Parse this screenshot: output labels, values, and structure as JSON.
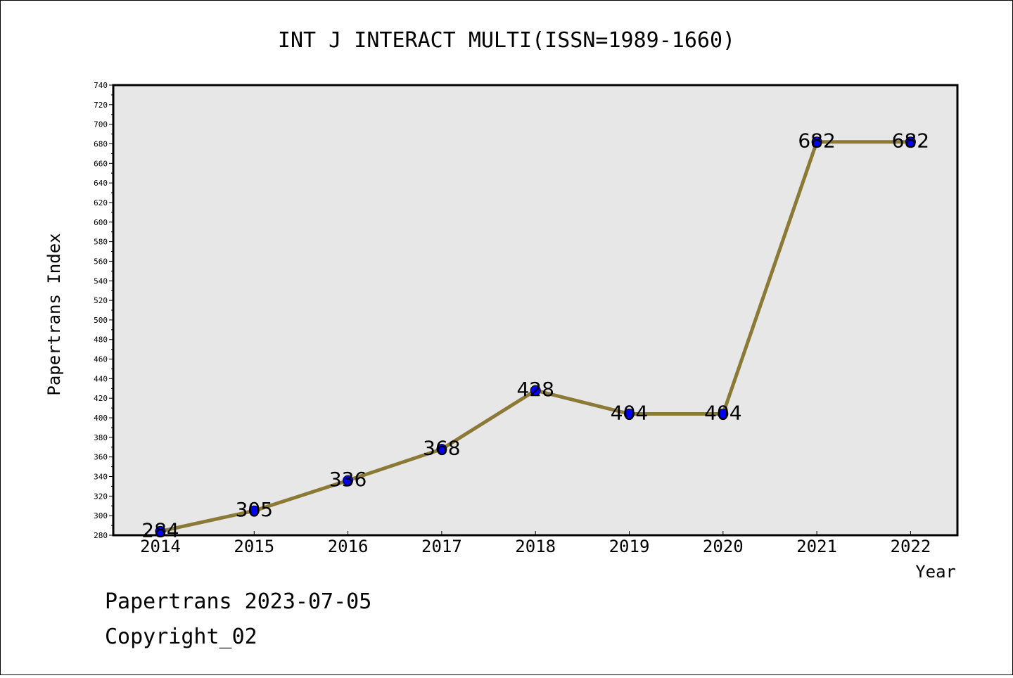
{
  "footer": {
    "line1": "Papertrans 2023-07-05",
    "line2": "Copyright_02"
  },
  "chart_data": {
    "type": "line",
    "title": "INT J INTERACT MULTI(ISSN=1989-1660)",
    "xlabel": "Year",
    "ylabel": "Papertrans Index",
    "categories": [
      "2014",
      "2015",
      "2016",
      "2017",
      "2018",
      "2019",
      "2020",
      "2021",
      "2022"
    ],
    "series": [
      {
        "values": [
          284,
          305,
          336,
          368,
          428,
          404,
          404,
          682,
          682
        ]
      }
    ],
    "ylim": [
      280,
      740
    ],
    "ytick_step": 20,
    "grid": false,
    "data_labels": true,
    "colors": {
      "line": "#8b7a35",
      "marker": "#0000ff",
      "plot_background": "#e7e7e7"
    }
  }
}
